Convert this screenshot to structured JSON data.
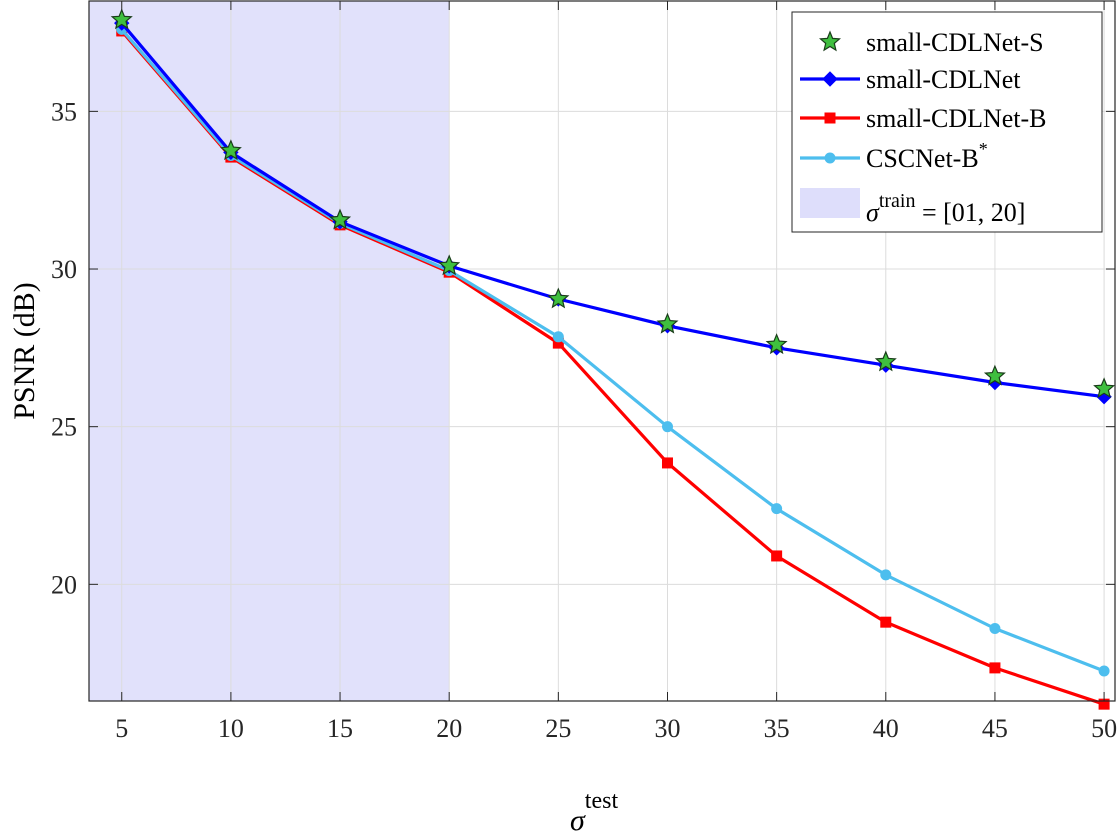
{
  "chart_data": {
    "type": "line",
    "title": "",
    "xlabel": "σ",
    "xlabel_sup": "test",
    "ylabel": "PSNR (dB)",
    "x": [
      5,
      10,
      15,
      20,
      25,
      30,
      35,
      40,
      45,
      50
    ],
    "xlim": [
      3.5,
      50.5
    ],
    "ylim": [
      16.3,
      38.5
    ],
    "xticks": [
      5,
      10,
      15,
      20,
      25,
      30,
      35,
      40,
      45,
      50
    ],
    "yticks": [
      20,
      25,
      30,
      35
    ],
    "grid": true,
    "shaded_region": {
      "x_from": 3.5,
      "x_to": 20,
      "color": "#dedefb"
    },
    "legend_position": "top-right",
    "series": [
      {
        "name": "small-CDLNet-S",
        "color": "#3fbf3f",
        "marker": "star",
        "line": false,
        "values": [
          37.9,
          33.75,
          31.55,
          30.1,
          29.05,
          28.25,
          27.6,
          27.05,
          26.6,
          26.2
        ]
      },
      {
        "name": "small-CDLNet",
        "color": "#0000ff",
        "marker": "diamond",
        "line": true,
        "values": [
          37.8,
          33.7,
          31.5,
          30.1,
          29.05,
          28.2,
          27.5,
          26.95,
          26.4,
          25.95
        ]
      },
      {
        "name": "small-CDLNet-B",
        "color": "#ff0000",
        "marker": "square",
        "line": true,
        "values": [
          37.55,
          33.55,
          31.4,
          29.9,
          27.65,
          23.85,
          20.9,
          18.8,
          17.35,
          16.2
        ]
      },
      {
        "name": "CSCNet-B",
        "name_sup": "*",
        "color": "#4dbeee",
        "marker": "circle",
        "line": true,
        "values": [
          37.6,
          33.6,
          31.45,
          29.95,
          27.85,
          25.0,
          22.4,
          20.3,
          18.6,
          17.25
        ]
      }
    ],
    "legend_region": {
      "label": "σ",
      "label_sup": "train",
      "label_rest": " = [01, 20]"
    }
  }
}
